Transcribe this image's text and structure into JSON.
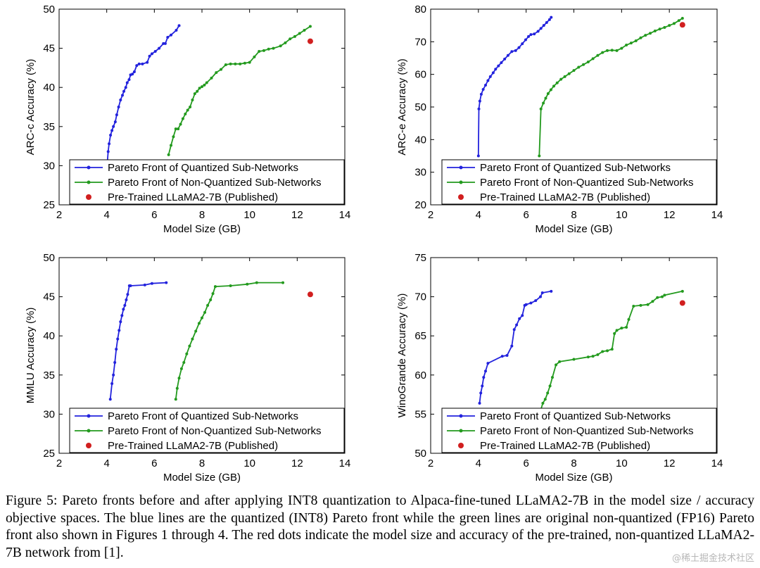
{
  "colors": {
    "quantized": "#2222dd",
    "non_quantized": "#239a1e",
    "pretrained": "#d11f1f"
  },
  "chart_data": [
    {
      "type": "line",
      "xlabel": "Model Size (GB)",
      "ylabel": "ARC-c Accuracy (%)",
      "xlim": [
        2,
        14
      ],
      "ylim": [
        25,
        50
      ],
      "xticks": [
        2,
        4,
        6,
        8,
        10,
        12,
        14
      ],
      "yticks": [
        25,
        30,
        35,
        40,
        45,
        50
      ],
      "legend_position": "bottom-right",
      "series": [
        {
          "name": "Pareto Front of Quantized Sub-Networks",
          "kind": "line",
          "color": "#2222dd",
          "x": [
            4.0,
            4.06,
            4.1,
            4.16,
            4.22,
            4.28,
            4.36,
            4.42,
            4.5,
            4.58,
            4.66,
            4.72,
            4.8,
            4.86,
            4.94,
            5.0,
            5.08,
            5.16,
            5.26,
            5.36,
            5.5,
            5.7,
            5.8,
            5.9,
            6.04,
            6.2,
            6.38,
            6.46,
            6.56,
            6.7,
            6.92,
            7.04
          ],
          "y": [
            29.5,
            31.8,
            32.8,
            33.9,
            34.5,
            35.0,
            35.6,
            36.5,
            37.5,
            38.4,
            39.0,
            39.5,
            40.0,
            40.6,
            41.0,
            41.6,
            41.7,
            42.0,
            42.8,
            43.0,
            43.0,
            43.2,
            44.0,
            44.3,
            44.6,
            45.0,
            45.6,
            45.6,
            46.4,
            46.7,
            47.3,
            47.9
          ]
        },
        {
          "name": "Pareto Front of Non-Quantized Sub-Networks",
          "kind": "line",
          "color": "#239a1e",
          "x": [
            6.6,
            6.7,
            6.8,
            6.9,
            7.0,
            7.1,
            7.2,
            7.3,
            7.4,
            7.5,
            7.6,
            7.7,
            7.8,
            7.9,
            8.0,
            8.1,
            8.2,
            8.4,
            8.6,
            8.8,
            9.0,
            9.2,
            9.4,
            9.6,
            9.8,
            10.0,
            10.2,
            10.4,
            10.6,
            10.8,
            11.0,
            11.3,
            11.5,
            11.7,
            11.9,
            12.1,
            12.3,
            12.55
          ],
          "y": [
            31.4,
            32.6,
            33.7,
            34.7,
            34.7,
            35.3,
            36.0,
            36.6,
            37.1,
            37.5,
            38.4,
            39.2,
            39.5,
            39.9,
            40.1,
            40.3,
            40.6,
            41.2,
            41.9,
            42.3,
            42.9,
            43.0,
            43.0,
            43.0,
            43.1,
            43.2,
            43.9,
            44.6,
            44.7,
            44.9,
            45.0,
            45.3,
            45.7,
            46.2,
            46.5,
            46.9,
            47.3,
            47.8
          ]
        },
        {
          "name": "Pre-Trained LLaMA2-7B (Published)",
          "kind": "point",
          "color": "#d11f1f",
          "x": [
            12.55
          ],
          "y": [
            45.9
          ]
        }
      ]
    },
    {
      "type": "line",
      "xlabel": "Model Size (GB)",
      "ylabel": "ARC-e Accuracy (%)",
      "xlim": [
        2,
        14
      ],
      "ylim": [
        20,
        80
      ],
      "xticks": [
        2,
        4,
        6,
        8,
        10,
        12,
        14
      ],
      "yticks": [
        20,
        30,
        40,
        50,
        60,
        70,
        80
      ],
      "legend_position": "bottom-right",
      "series": [
        {
          "name": "Pareto Front of Quantized Sub-Networks",
          "kind": "line",
          "color": "#2222dd",
          "x": [
            4.0,
            4.02,
            4.06,
            4.12,
            4.2,
            4.3,
            4.4,
            4.5,
            4.62,
            4.72,
            4.84,
            4.96,
            5.1,
            5.24,
            5.4,
            5.56,
            5.7,
            5.84,
            5.98,
            6.1,
            6.2,
            6.34,
            6.5,
            6.62,
            6.74,
            6.86,
            6.98,
            7.05
          ],
          "y": [
            35.0,
            49.4,
            51.8,
            53.9,
            55.4,
            56.7,
            58.1,
            59.3,
            60.5,
            61.6,
            62.6,
            63.6,
            64.7,
            65.8,
            67.0,
            67.3,
            68.2,
            69.4,
            70.6,
            71.6,
            72.2,
            72.4,
            73.2,
            74.1,
            75.0,
            75.9,
            76.8,
            77.5
          ]
        },
        {
          "name": "Pareto Front of Non-Quantized Sub-Networks",
          "kind": "line",
          "color": "#239a1e",
          "x": [
            6.55,
            6.62,
            6.72,
            6.82,
            6.92,
            7.04,
            7.16,
            7.3,
            7.46,
            7.62,
            7.8,
            8.0,
            8.2,
            8.4,
            8.6,
            8.8,
            9.0,
            9.2,
            9.4,
            9.6,
            9.8,
            10.0,
            10.2,
            10.4,
            10.6,
            10.8,
            11.0,
            11.2,
            11.4,
            11.6,
            11.8,
            12.0,
            12.2,
            12.4,
            12.55
          ],
          "y": [
            35.0,
            49.4,
            51.2,
            52.7,
            54.1,
            55.3,
            56.4,
            57.4,
            58.5,
            59.3,
            60.2,
            61.2,
            62.2,
            63.0,
            63.8,
            64.8,
            65.8,
            66.7,
            67.3,
            67.4,
            67.3,
            68.0,
            69.0,
            69.6,
            70.3,
            71.2,
            72.0,
            72.6,
            73.3,
            73.9,
            74.4,
            75.0,
            75.6,
            76.5,
            77.2
          ]
        },
        {
          "name": "Pre-Trained LLaMA2-7B (Published)",
          "kind": "point",
          "color": "#d11f1f",
          "x": [
            12.55
          ],
          "y": [
            75.2
          ]
        }
      ]
    },
    {
      "type": "line",
      "xlabel": "Model Size (GB)",
      "ylabel": "MMLU Accuracy (%)",
      "xlim": [
        2,
        14
      ],
      "ylim": [
        25,
        50
      ],
      "xticks": [
        2,
        4,
        6,
        8,
        10,
        12,
        14
      ],
      "yticks": [
        25,
        30,
        35,
        40,
        45,
        50
      ],
      "legend_position": "bottom-right",
      "series": [
        {
          "name": "Pareto Front of Quantized Sub-Networks",
          "kind": "line",
          "color": "#2222dd",
          "x": [
            4.15,
            4.22,
            4.28,
            4.34,
            4.4,
            4.46,
            4.52,
            4.58,
            4.64,
            4.7,
            4.76,
            4.82,
            4.88,
            4.95,
            5.0,
            5.6,
            5.9,
            6.5
          ],
          "y": [
            31.9,
            33.9,
            35.0,
            36.6,
            38.3,
            39.6,
            40.7,
            41.8,
            42.6,
            43.4,
            43.9,
            44.6,
            45.3,
            46.4,
            46.4,
            46.5,
            46.7,
            46.8
          ]
        },
        {
          "name": "Pareto Front of Non-Quantized Sub-Networks",
          "kind": "line",
          "color": "#239a1e",
          "x": [
            6.9,
            6.96,
            7.04,
            7.14,
            7.24,
            7.36,
            7.48,
            7.6,
            7.74,
            7.88,
            8.0,
            8.12,
            8.24,
            8.36,
            8.46,
            8.56,
            9.2,
            9.9,
            10.3,
            11.4
          ],
          "y": [
            31.9,
            33.3,
            34.6,
            35.8,
            36.6,
            37.7,
            38.7,
            39.6,
            40.6,
            41.6,
            42.3,
            43.0,
            43.9,
            44.6,
            45.4,
            46.3,
            46.4,
            46.6,
            46.8,
            46.8
          ]
        },
        {
          "name": "Pre-Trained LLaMA2-7B (Published)",
          "kind": "point",
          "color": "#d11f1f",
          "x": [
            12.55
          ],
          "y": [
            45.3
          ]
        }
      ]
    },
    {
      "type": "line",
      "xlabel": "Model Size (GB)",
      "ylabel": "WinoGrande Accuracy (%)",
      "xlim": [
        2,
        14
      ],
      "ylim": [
        50,
        75
      ],
      "xticks": [
        2,
        4,
        6,
        8,
        10,
        12,
        14
      ],
      "yticks": [
        50,
        55,
        60,
        65,
        70,
        75
      ],
      "legend_position": "bottom-right",
      "series": [
        {
          "name": "Pareto Front of Quantized Sub-Networks",
          "kind": "line",
          "color": "#2222dd",
          "x": [
            4.05,
            4.1,
            4.16,
            4.22,
            4.3,
            4.4,
            5.0,
            5.2,
            5.4,
            5.5,
            5.6,
            5.72,
            5.84,
            5.94,
            6.0,
            6.2,
            6.4,
            6.6,
            6.68,
            7.05
          ],
          "y": [
            56.4,
            57.7,
            58.6,
            59.7,
            60.5,
            61.5,
            62.4,
            62.5,
            63.7,
            65.8,
            66.4,
            67.2,
            67.6,
            68.9,
            69.0,
            69.2,
            69.5,
            70.0,
            70.5,
            70.7
          ]
        },
        {
          "name": "Pareto Front of Non-Quantized Sub-Networks",
          "kind": "line",
          "color": "#239a1e",
          "x": [
            6.6,
            6.7,
            6.8,
            6.9,
            7.0,
            7.1,
            7.25,
            7.4,
            8.0,
            8.6,
            8.8,
            9.0,
            9.2,
            9.4,
            9.6,
            9.7,
            9.8,
            10.0,
            10.2,
            10.3,
            10.5,
            10.8,
            11.1,
            11.3,
            11.5,
            11.7,
            11.8,
            12.55
          ],
          "y": [
            55.4,
            56.4,
            56.9,
            57.7,
            58.6,
            59.7,
            61.3,
            61.7,
            62.0,
            62.3,
            62.4,
            62.6,
            63.0,
            63.1,
            63.3,
            65.3,
            65.7,
            66.0,
            66.1,
            67.1,
            68.8,
            68.9,
            69.0,
            69.4,
            69.9,
            70.0,
            70.2,
            70.7
          ]
        },
        {
          "name": "Pre-Trained LLaMA2-7B (Published)",
          "kind": "point",
          "color": "#d11f1f",
          "x": [
            12.55
          ],
          "y": [
            69.2
          ]
        }
      ]
    }
  ],
  "caption": "Figure 5: Pareto fronts before and after applying INT8 quantization to Alpaca-fine-tuned LLaMA2-7B in the model size / accuracy objective spaces. The blue lines are the quantized (INT8) Pareto front while the green lines are original non-quantized (FP16) Pareto front also shown in Figures 1 through 4.  The red dots indicate the model size and accuracy of the pre-trained, non-quantized LLaMA2-7B network from [1].",
  "watermark": "@稀土掘金技术社区"
}
